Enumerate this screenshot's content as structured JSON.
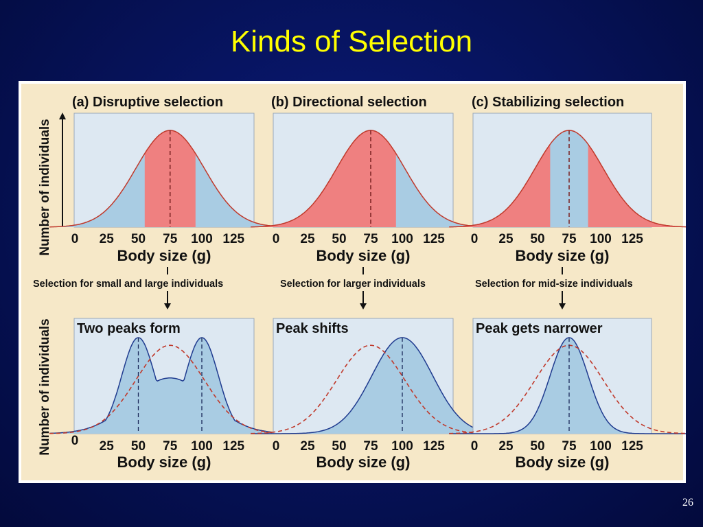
{
  "slide": {
    "title": "Kinds of Selection",
    "page_number": "26"
  },
  "colors": {
    "background": "#061258",
    "title": "#ffff00",
    "figure_bg": "#f6e8c8",
    "plot_bg": "#dde8f2",
    "selected_fill": "#ef8080",
    "population_fill": "#a9cce3",
    "curve_line": "#1f3b8f",
    "original_dashed": "#c0392b"
  },
  "figure": {
    "y_axis_label": "Number of individuals",
    "x_axis_label": "Body size (g)",
    "tick_labels": [
      "0",
      "25",
      "50",
      "75",
      "100",
      "125"
    ],
    "panels": [
      {
        "id": "a",
        "heading": "(a) Disruptive selection",
        "selection_note": "Selection for small and large individuals",
        "result_label": "Two peaks form",
        "before": {
          "mean": 75,
          "selected_ranges": [
            [
              55,
              95
            ]
          ]
        },
        "after": {
          "peaks": [
            50,
            100
          ]
        }
      },
      {
        "id": "b",
        "heading": "(b) Directional selection",
        "selection_note": "Selection for larger individuals",
        "result_label": "Peak shifts",
        "before": {
          "mean": 75,
          "selected_ranges": [
            [
              -20,
              95
            ]
          ]
        },
        "after": {
          "peaks": [
            100
          ]
        }
      },
      {
        "id": "c",
        "heading": "(c) Stabilizing selection",
        "selection_note": "Selection for mid-size individuals",
        "result_label": "Peak gets narrower",
        "before": {
          "mean": 75,
          "selected_ranges": [
            [
              -20,
              60
            ],
            [
              90,
              170
            ]
          ]
        },
        "after": {
          "peaks": [
            75
          ]
        }
      }
    ]
  }
}
